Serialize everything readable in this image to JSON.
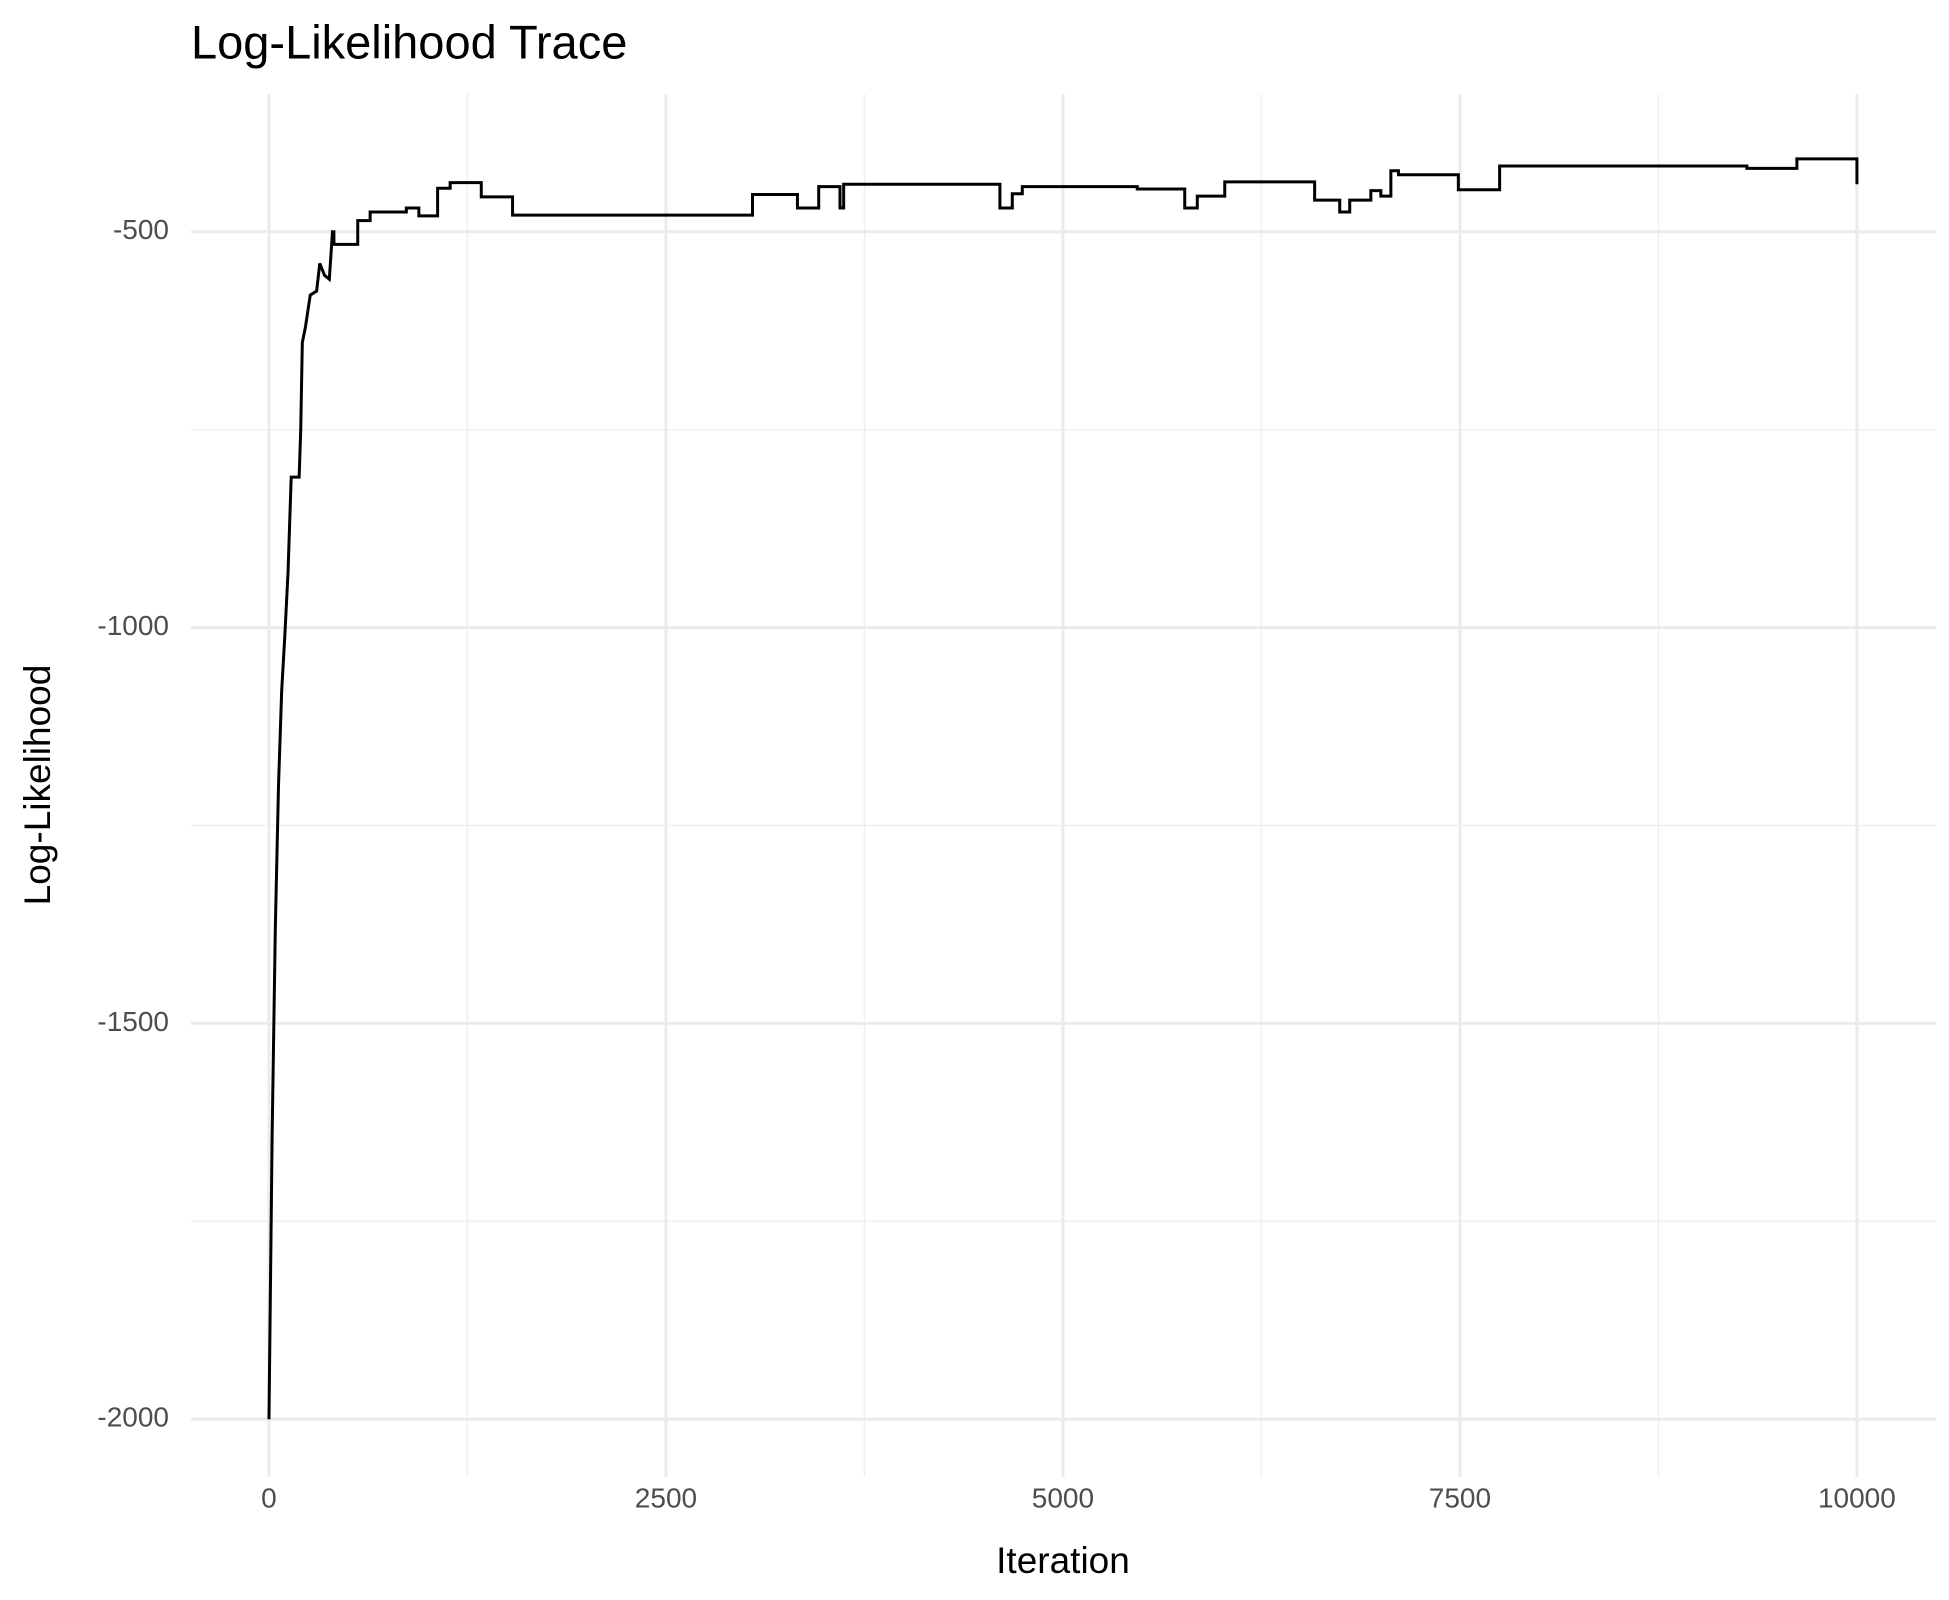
{
  "chart_data": {
    "type": "line",
    "title": "Log-Likelihood Trace",
    "x_label": "Iteration",
    "y_label": "Log-Likelihood",
    "xlim": [
      -491,
      10498
    ],
    "ylim": [
      -2073,
      -326
    ],
    "xticks": [
      0,
      2500,
      5000,
      7500,
      10000
    ],
    "yticks": [
      -2000,
      -1500,
      -1000,
      -500
    ],
    "x_minor_ticks": [
      1250,
      3750,
      6250,
      8750
    ],
    "y_minor_ticks": [
      -1750,
      -1250,
      -750
    ],
    "grid": true,
    "series": [
      {
        "name": "Log-Likelihood",
        "color": "#000000",
        "x": [
          0,
          20,
          40,
          60,
          80,
          100,
          120,
          140,
          190,
          200,
          210,
          230,
          260,
          300,
          320,
          350,
          380,
          400,
          409,
          409,
          559,
          559,
          637,
          637,
          865,
          865,
          944,
          944,
          1062,
          1062,
          1141,
          1141,
          1337,
          1337,
          1534,
          1534,
          3045,
          3045,
          3328,
          3328,
          3462,
          3462,
          3596,
          3596,
          3619,
          3619,
          4603,
          4603,
          4681,
          4681,
          4744,
          4744,
          5468,
          5468,
          5767,
          5767,
          5846,
          5846,
          6019,
          6019,
          6585,
          6585,
          6743,
          6743,
          6806,
          6806,
          6939,
          6939,
          7002,
          7002,
          7065,
          7065,
          7113,
          7113,
          7490,
          7490,
          7750,
          7750,
          9307,
          9307,
          9622,
          9622,
          10000,
          10000
        ],
        "values": [
          -2000,
          -1640,
          -1380,
          -1200,
          -1080,
          -1010,
          -930,
          -810,
          -810,
          -750,
          -640,
          -620,
          -580,
          -575,
          -540,
          -555,
          -560,
          -500,
          -500,
          -516,
          -516,
          -486,
          -486,
          -475,
          -475,
          -470,
          -470,
          -480,
          -480,
          -445,
          -445,
          -438,
          -438,
          -456,
          -456,
          -479,
          -479,
          -453,
          -453,
          -470,
          -470,
          -443,
          -443,
          -470,
          -470,
          -440,
          -440,
          -470,
          -470,
          -452,
          -452,
          -443,
          -443,
          -446,
          -446,
          -470,
          -470,
          -455,
          -455,
          -437,
          -437,
          -460,
          -460,
          -475,
          -475,
          -460,
          -460,
          -448,
          -448,
          -455,
          -455,
          -423,
          -423,
          -428,
          -428,
          -447,
          -447,
          -417,
          -417,
          -420,
          -420,
          -408,
          -408,
          -440
        ]
      }
    ]
  }
}
